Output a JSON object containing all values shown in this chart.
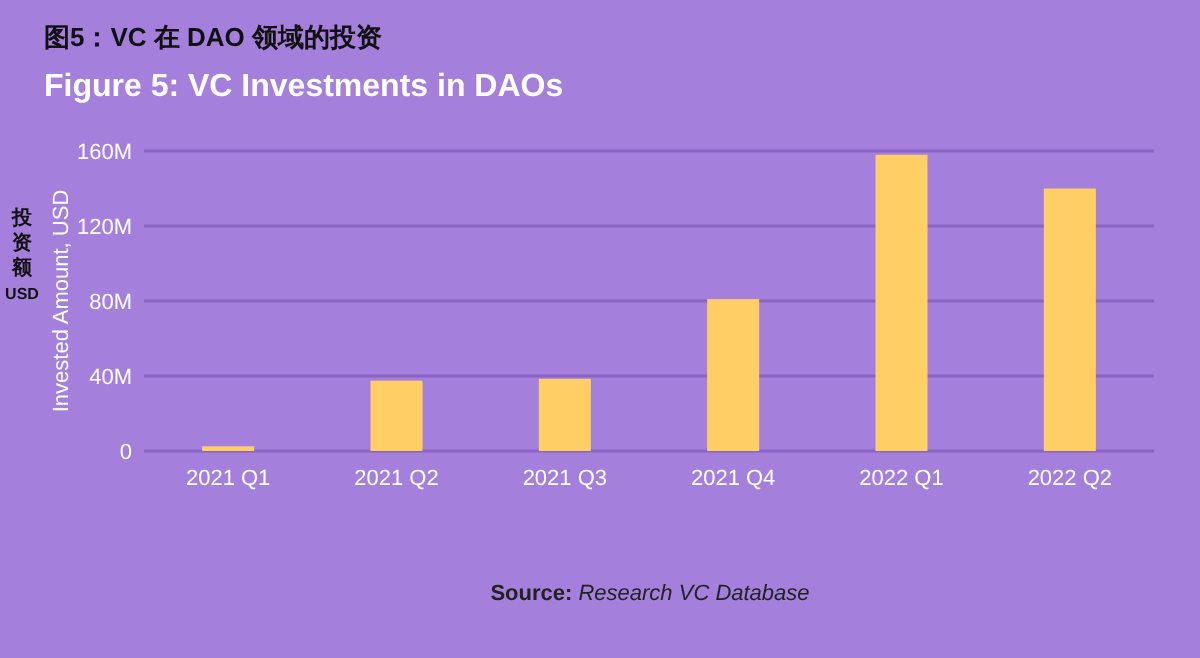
{
  "chart_data": {
    "type": "bar",
    "title": "图5：VC 在 DAO 领域的投资",
    "subtitle": "Figure 5: VC Investments in DAOs",
    "ylabel": "Invested Amount, USD",
    "annotations": [
      "投资额USD",
      "Source: Research VC Database"
    ],
    "categories": [
      "2021 Q1",
      "2021 Q2",
      "2021 Q3",
      "2021 Q4",
      "2022 Q1",
      "2022 Q2"
    ],
    "values": [
      2.5,
      37.5,
      38.5,
      81,
      158,
      140
    ],
    "color": "#ffcf66",
    "ylim": [
      0,
      160
    ],
    "yticks": [
      {
        "value": 0,
        "label": "0"
      },
      {
        "value": 40,
        "label": "40M"
      },
      {
        "value": 80,
        "label": "80M"
      },
      {
        "value": 120,
        "label": "120M"
      },
      {
        "value": 160,
        "label": "160M"
      }
    ],
    "grid": "y"
  }
}
